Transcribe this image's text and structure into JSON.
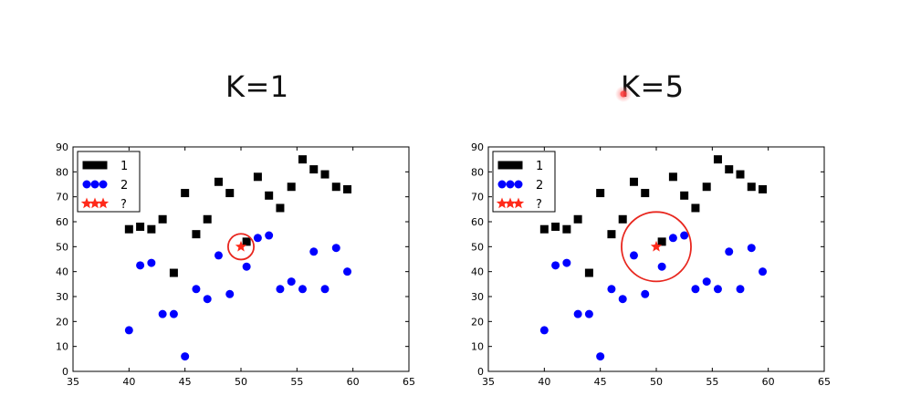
{
  "titles": {
    "left": "K=1",
    "right": "K=5"
  },
  "chart_data": [
    {
      "type": "scatter",
      "title": "K=1",
      "xlim": [
        35,
        65
      ],
      "ylim": [
        0,
        90
      ],
      "xticks": [
        35,
        40,
        45,
        50,
        55,
        60,
        65
      ],
      "yticks": [
        0,
        10,
        20,
        30,
        40,
        50,
        60,
        70,
        80,
        90
      ],
      "legend": {
        "position": "top-left",
        "entries": [
          "1",
          "2",
          "?"
        ]
      },
      "series": [
        {
          "name": "1",
          "marker": "square",
          "color": "#000000",
          "points": [
            [
              40,
              57
            ],
            [
              41,
              58
            ],
            [
              42,
              57
            ],
            [
              43,
              61
            ],
            [
              44,
              39.5
            ],
            [
              45,
              71.5
            ],
            [
              46,
              55
            ],
            [
              47,
              61
            ],
            [
              48,
              76
            ],
            [
              49,
              71.5
            ],
            [
              50.5,
              52
            ],
            [
              51.5,
              78
            ],
            [
              52.5,
              70.5
            ],
            [
              53.5,
              65.5
            ],
            [
              54.5,
              74
            ],
            [
              55.5,
              85
            ],
            [
              56.5,
              81
            ],
            [
              57.5,
              79
            ],
            [
              58.5,
              74
            ],
            [
              59.5,
              73
            ]
          ]
        },
        {
          "name": "2",
          "marker": "circle",
          "color": "#0000ff",
          "points": [
            [
              40,
              16.5
            ],
            [
              41,
              42.5
            ],
            [
              42,
              43.5
            ],
            [
              43,
              23
            ],
            [
              44,
              23
            ],
            [
              45,
              6
            ],
            [
              46,
              33
            ],
            [
              47,
              29
            ],
            [
              48,
              46.5
            ],
            [
              49,
              31
            ],
            [
              50.5,
              42
            ],
            [
              51.5,
              53.5
            ],
            [
              52.5,
              54.5
            ],
            [
              53.5,
              33
            ],
            [
              54.5,
              36
            ],
            [
              55.5,
              33
            ],
            [
              56.5,
              48
            ],
            [
              57.5,
              33
            ],
            [
              58.5,
              49.5
            ],
            [
              59.5,
              40
            ]
          ]
        },
        {
          "name": "?",
          "marker": "star",
          "color": "#ff2a1a",
          "points": [
            [
              50,
              50
            ]
          ]
        }
      ],
      "circle": {
        "center": [
          50,
          50
        ],
        "radius_x": 1.15,
        "color": "#e8261e"
      }
    },
    {
      "type": "scatter",
      "title": "K=5",
      "xlim": [
        35,
        65
      ],
      "ylim": [
        0,
        90
      ],
      "xticks": [
        35,
        40,
        45,
        50,
        55,
        60,
        65
      ],
      "yticks": [
        0,
        10,
        20,
        30,
        40,
        50,
        60,
        70,
        80,
        90
      ],
      "legend": {
        "position": "top-left",
        "entries": [
          "1",
          "2",
          "?"
        ]
      },
      "series": [
        {
          "name": "1",
          "marker": "square",
          "color": "#000000",
          "points": [
            [
              40,
              57
            ],
            [
              41,
              58
            ],
            [
              42,
              57
            ],
            [
              43,
              61
            ],
            [
              44,
              39.5
            ],
            [
              45,
              71.5
            ],
            [
              46,
              55
            ],
            [
              47,
              61
            ],
            [
              48,
              76
            ],
            [
              49,
              71.5
            ],
            [
              50.5,
              52
            ],
            [
              51.5,
              78
            ],
            [
              52.5,
              70.5
            ],
            [
              53.5,
              65.5
            ],
            [
              54.5,
              74
            ],
            [
              55.5,
              85
            ],
            [
              56.5,
              81
            ],
            [
              57.5,
              79
            ],
            [
              58.5,
              74
            ],
            [
              59.5,
              73
            ]
          ]
        },
        {
          "name": "2",
          "marker": "circle",
          "color": "#0000ff",
          "points": [
            [
              40,
              16.5
            ],
            [
              41,
              42.5
            ],
            [
              42,
              43.5
            ],
            [
              43,
              23
            ],
            [
              44,
              23
            ],
            [
              45,
              6
            ],
            [
              46,
              33
            ],
            [
              47,
              29
            ],
            [
              48,
              46.5
            ],
            [
              49,
              31
            ],
            [
              50.5,
              42
            ],
            [
              51.5,
              53.5
            ],
            [
              52.5,
              54.5
            ],
            [
              53.5,
              33
            ],
            [
              54.5,
              36
            ],
            [
              55.5,
              33
            ],
            [
              56.5,
              48
            ],
            [
              57.5,
              33
            ],
            [
              58.5,
              49.5
            ],
            [
              59.5,
              40
            ]
          ]
        },
        {
          "name": "?",
          "marker": "star",
          "color": "#ff2a1a",
          "points": [
            [
              50,
              50
            ]
          ]
        }
      ],
      "circle": {
        "center": [
          50,
          50
        ],
        "radius_x": 3.1,
        "color": "#e8261e"
      }
    }
  ]
}
